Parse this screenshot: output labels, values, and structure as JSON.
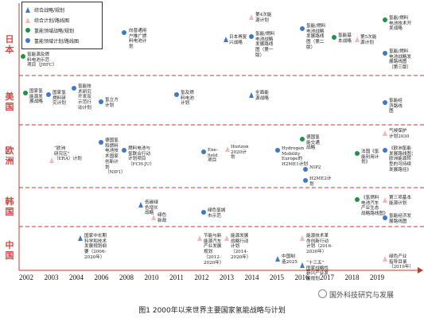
{
  "legend": [
    {
      "shape": "tri-blue",
      "text": "综合战略/规划"
    },
    {
      "shape": "tri-pink",
      "text": "综合计划/路线图"
    },
    {
      "shape": "circle-green",
      "text": "氢能领域战略/规划"
    },
    {
      "shape": "circle-blue",
      "text": "氢能领域计划/路线图"
    }
  ],
  "countries": [
    {
      "id": "japan",
      "chars": [
        "日",
        "本"
      ]
    },
    {
      "id": "usa",
      "chars": [
        "美",
        "国"
      ]
    },
    {
      "id": "eu",
      "chars": [
        "欧",
        "洲"
      ]
    },
    {
      "id": "korea",
      "chars": [
        "韩",
        "国"
      ]
    },
    {
      "id": "china",
      "chars": [
        "中",
        "国"
      ]
    }
  ],
  "years": [
    "2002",
    "2003",
    "2004",
    "2006",
    "2008",
    "2010",
    "2011",
    "2012",
    "2013",
    "2014",
    "2015",
    "2016",
    "2017",
    "2018",
    "2019"
  ],
  "items": [
    {
      "id": "jp-jhfc",
      "region": "japan",
      "marker": "circle-green",
      "lines": [
        "氢能源及燃",
        "料电池示范",
        "项目（JHFC）"
      ]
    },
    {
      "id": "jp-2010-plan",
      "region": "japan",
      "marker": "circle-blue",
      "lines": [
        "向普通用",
        "户推广燃",
        "料电池计",
        "划"
      ]
    },
    {
      "id": "jp-recovery",
      "region": "japan",
      "marker": "tri-blue",
      "lines": [
        "日本再复",
        "兴战略"
      ]
    },
    {
      "id": "jp-4th-energy",
      "region": "japan",
      "marker": "tri-pink",
      "lines": [
        "第4次能",
        "源计划"
      ]
    },
    {
      "id": "jp-roadmap1",
      "region": "japan",
      "marker": "circle-blue",
      "lines": [
        "氢能/燃料",
        "电池战略",
        "发展路线",
        "图（第一",
        "版）"
      ]
    },
    {
      "id": "jp-roadmap2",
      "region": "japan",
      "marker": "circle-blue",
      "lines": [
        "氢能/燃料",
        "电池战略",
        "发展路线",
        "图（第二",
        "版）"
      ]
    },
    {
      "id": "jp-basic",
      "region": "japan",
      "marker": "circle-green",
      "lines": [
        "氢能基",
        "本战略"
      ]
    },
    {
      "id": "jp-5th-energy",
      "region": "japan",
      "marker": "tri-pink",
      "lines": [
        "第5次能",
        "源计划"
      ]
    },
    {
      "id": "jp-fc-tech",
      "region": "japan",
      "marker": "circle-green",
      "lines": [
        "氢能/燃料",
        "电池技术开",
        "发战略"
      ]
    },
    {
      "id": "jp-roadmap3",
      "region": "japan",
      "marker": "circle-blue",
      "lines": [
        "氢能/燃料",
        "电池战略发",
        "展路线图",
        "（第三版）"
      ]
    },
    {
      "id": "us-nat-strategy",
      "region": "usa",
      "marker": "circle-green",
      "lines": [
        "国家氢",
        "能源发",
        "展战略"
      ]
    },
    {
      "id": "us-fuel-plan",
      "region": "usa",
      "marker": "circle-blue",
      "lines": [
        "国家氢",
        "燃料研",
        "究计划"
      ]
    },
    {
      "id": "us-tech-plan",
      "region": "usa",
      "marker": "circle-blue",
      "lines": [
        "氢能技",
        "术研究",
        "开发及",
        "示范行",
        "动计划"
      ]
    },
    {
      "id": "us-h2-plan",
      "region": "usa",
      "marker": "circle-blue",
      "lines": [
        "氢立方",
        "计划"
      ]
    },
    {
      "id": "us-h2usa",
      "region": "usa",
      "marker": "circle-blue",
      "lines": [
        "氢及燃",
        "料电池",
        "计划"
      ]
    },
    {
      "id": "us-energy-strategy",
      "region": "usa",
      "marker": "tri-blue",
      "lines": [
        "全面能",
        "源战略"
      ]
    },
    {
      "id": "us-h2-economy",
      "region": "usa",
      "marker": "circle-blue",
      "lines": [
        "氢能经",
        "济路线",
        "图"
      ]
    },
    {
      "id": "eu-era",
      "region": "eu",
      "marker": "tri-pink",
      "lines": [
        "“欧洲",
        "研究区”",
        "（ERA）计划"
      ]
    },
    {
      "id": "eu-nip1",
      "region": "eu",
      "marker": "circle-blue",
      "lines": [
        "德国氢",
        "和燃料",
        "电池技",
        "术国家",
        "创新计",
        "划",
        "（NIP1）"
      ]
    },
    {
      "id": "eu-fch-ju",
      "region": "eu",
      "marker": "circle-blue",
      "lines": [
        "燃料电池与",
        "氢联合行动",
        "计划项目",
        "（FCH-JU）"
      ]
    },
    {
      "id": "eu-enefield",
      "region": "eu",
      "marker": "circle-blue",
      "lines": [
        "Ene-",
        "field",
        "项目"
      ]
    },
    {
      "id": "eu-horizon",
      "region": "eu",
      "marker": "tri-pink",
      "lines": [
        "Horizon",
        "2020计",
        "划"
      ]
    },
    {
      "id": "eu-h2me",
      "region": "eu",
      "marker": "circle-blue",
      "lines": [
        "Hydrogen",
        "Mobility",
        "Europe的",
        "H2ME1计划"
      ]
    },
    {
      "id": "eu-de-h2-strategy",
      "region": "eu",
      "marker": "circle-green",
      "lines": [
        "德国氢",
        "能交通",
        "战略"
      ]
    },
    {
      "id": "eu-nip2",
      "region": "eu",
      "marker": "circle-blue",
      "lines": [
        "NIP2"
      ]
    },
    {
      "id": "eu-h2me2",
      "region": "eu",
      "marker": "circle-blue",
      "lines": [
        "H2ME2计",
        "划"
      ]
    },
    {
      "id": "eu-fr-h2plan",
      "region": "eu",
      "marker": "circle-green",
      "lines": [
        "法国《氢",
        "能利用计",
        "划》"
      ]
    },
    {
      "id": "eu-climate-2030",
      "region": "eu",
      "marker": "tri-pink",
      "lines": [
        "气候保护",
        "计划2030"
      ]
    },
    {
      "id": "eu-h2-roadmap",
      "region": "eu",
      "marker": "circle-blue",
      "lines": [
        "《欧洲氢能",
        "发展路线图：",
        "欧洲能源转",
        "型的可持续",
        "发展路径》"
      ]
    },
    {
      "id": "kr-low-carbon",
      "region": "korea",
      "marker": "tri-blue",
      "lines": [
        "低碳绿",
        "色增长",
        "战略"
      ]
    },
    {
      "id": "kr-green-deal",
      "region": "korea",
      "marker": "tri-pink",
      "lines": [
        "绿色",
        "新政"
      ]
    },
    {
      "id": "kr-green-city",
      "region": "korea",
      "marker": "circle-blue",
      "lines": [
        "绿色氢城",
        "市示范"
      ]
    },
    {
      "id": "kr-fc-vehicle",
      "region": "korea",
      "marker": "circle-green",
      "lines": [
        "《氢燃料",
        "电池汽车",
        "产业生态",
        "战略路线图》"
      ]
    },
    {
      "id": "kr-3rd-energy",
      "region": "korea",
      "marker": "tri-pink",
      "lines": [
        "第三项基本",
        "能源计划"
      ]
    },
    {
      "id": "kr-h2-economy",
      "region": "korea",
      "marker": "circle-blue",
      "lines": [
        "氢能经济发",
        "展路线图"
      ]
    },
    {
      "id": "cn-sci-plan",
      "region": "china",
      "marker": "tri-blue",
      "lines": [
        "国家中长期",
        "科学和技术",
        "发展规划纲",
        "要（2006-",
        "2020年）"
      ]
    },
    {
      "id": "cn-nev-plan",
      "region": "china",
      "marker": "tri-pink",
      "lines": [
        "节能与新",
        "能源汽车",
        "产业发展",
        "规划",
        "（2012-",
        "2020年）"
      ]
    },
    {
      "id": "cn-energy-action",
      "region": "china",
      "marker": "tri-pink",
      "lines": [
        "能源发展",
        "战略行动",
        "计划",
        "（2014-",
        "2020年）"
      ]
    },
    {
      "id": "cn-made-2025",
      "region": "china",
      "marker": "tri-blue",
      "lines": [
        "中国制",
        "造2025"
      ]
    },
    {
      "id": "cn-energy-tech",
      "region": "china",
      "marker": "tri-pink",
      "lines": [
        "能源技术革",
        "命创新行动",
        "计划（2016-",
        "2030年）"
      ]
    },
    {
      "id": "cn-13th-plan",
      "region": "china",
      "marker": "tri-blue",
      "lines": [
        "“十三五”",
        "国家战略性",
        "新兴产业发",
        "展规划"
      ]
    },
    {
      "id": "cn-green-catalog",
      "region": "china",
      "marker": "tri-pink",
      "lines": [
        "绿色产业",
        "指导目录",
        "（2019年）"
      ]
    }
  ],
  "caption": "图1 2000年以来世界主要国家氢能战略与计划",
  "watermark": "国外科技研究与发展",
  "colors": {
    "divider": "#c0392b",
    "country_text": "#d64545",
    "axis": "#c0392b",
    "blue": "#3d79c8",
    "pink": "#f4b6b6",
    "green": "#1a9641"
  }
}
